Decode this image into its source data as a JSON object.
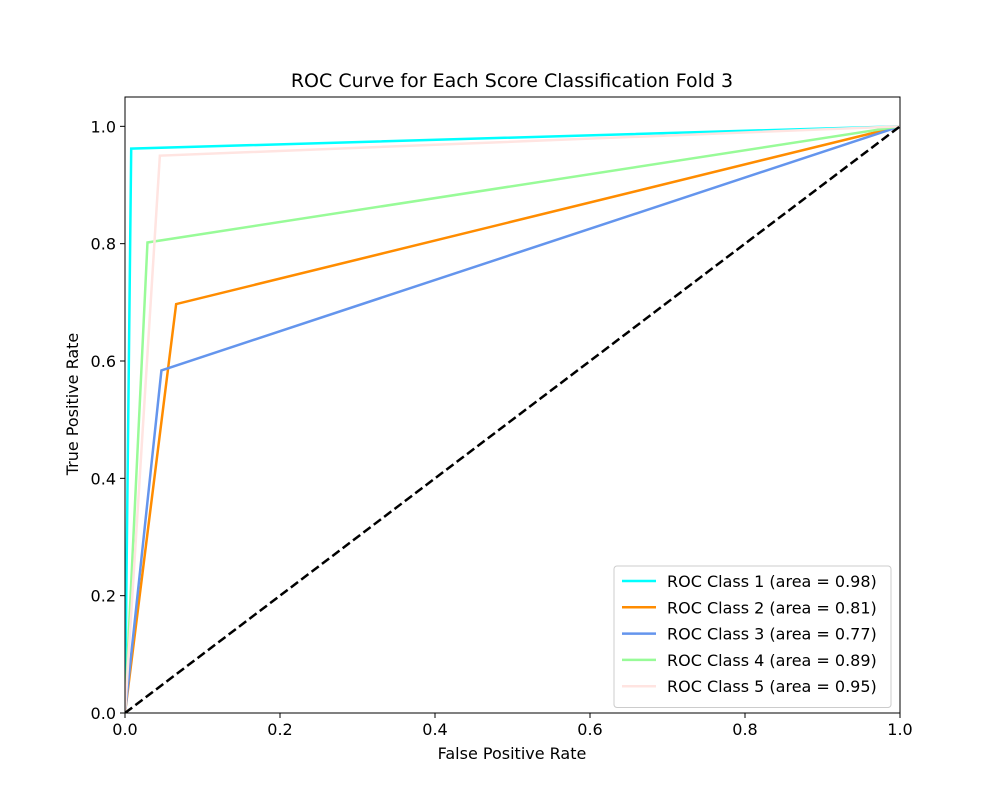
{
  "chart_data": {
    "type": "line",
    "title": "ROC Curve for Each Score Classification Fold 3",
    "xlabel": "False Positive Rate",
    "ylabel": "True Positive Rate",
    "xlim": [
      0.0,
      1.0
    ],
    "ylim": [
      0.0,
      1.05
    ],
    "xticks": [
      0.0,
      0.2,
      0.4,
      0.6,
      0.8,
      1.0
    ],
    "xtick_labels": [
      "0.0",
      "0.2",
      "0.4",
      "0.6",
      "0.8",
      "1.0"
    ],
    "yticks": [
      0.0,
      0.2,
      0.4,
      0.6,
      0.8,
      1.0
    ],
    "ytick_labels": [
      "0.0",
      "0.2",
      "0.4",
      "0.6",
      "0.8",
      "1.0"
    ],
    "grid": false,
    "legend_position": "lower-right",
    "series": [
      {
        "name": "ROC Class 1 (area = 0.98)",
        "color": "#00ffff",
        "x": [
          0.0,
          0.008,
          1.0
        ],
        "y": [
          0.0,
          0.962,
          1.0
        ]
      },
      {
        "name": "ROC Class 2 (area = 0.81)",
        "color": "#ff8c00",
        "x": [
          0.0,
          0.066,
          1.0
        ],
        "y": [
          0.0,
          0.697,
          1.0
        ]
      },
      {
        "name": "ROC Class 3 (area = 0.77)",
        "color": "#6495ed",
        "x": [
          0.0,
          0.047,
          1.0
        ],
        "y": [
          0.0,
          0.584,
          1.0
        ]
      },
      {
        "name": "ROC Class 4 (area = 0.89)",
        "color": "#98fb98",
        "x": [
          0.0,
          0.029,
          1.0
        ],
        "y": [
          0.0,
          0.802,
          1.0
        ]
      },
      {
        "name": "ROC Class 5 (area = 0.95)",
        "color": "#ffe4e1",
        "x": [
          0.0,
          0.045,
          1.0
        ],
        "y": [
          0.0,
          0.95,
          1.0
        ]
      }
    ],
    "reference_line": {
      "x": [
        0.0,
        1.0
      ],
      "y": [
        0.0,
        1.0
      ],
      "color": "#000000",
      "style": "dashed"
    }
  }
}
